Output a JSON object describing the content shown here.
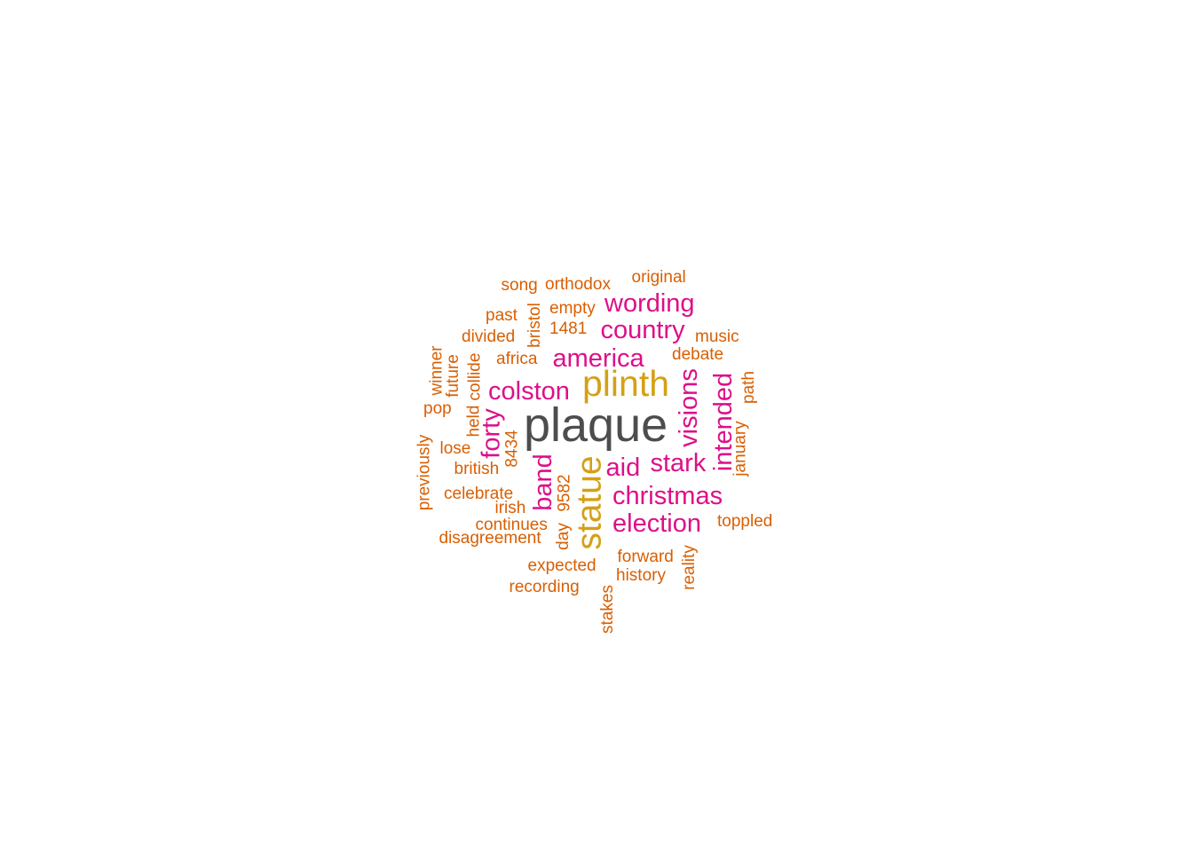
{
  "colors": {
    "dark": "#4d4d4d",
    "gold": "#d4a017",
    "magenta": "#dd0f8a",
    "orange": "#d95f02"
  },
  "words": [
    {
      "text": "plaque",
      "tier": "dark"
    },
    {
      "text": "plinth",
      "tier": "gold"
    },
    {
      "text": "statue",
      "tier": "gold"
    },
    {
      "text": "wording",
      "tier": "magenta"
    },
    {
      "text": "country",
      "tier": "magenta"
    },
    {
      "text": "america",
      "tier": "magenta"
    },
    {
      "text": "colston",
      "tier": "magenta"
    },
    {
      "text": "visions",
      "tier": "magenta"
    },
    {
      "text": "intended",
      "tier": "magenta"
    },
    {
      "text": "forty",
      "tier": "magenta"
    },
    {
      "text": "band",
      "tier": "magenta"
    },
    {
      "text": "aid",
      "tier": "magenta"
    },
    {
      "text": "stark",
      "tier": "magenta"
    },
    {
      "text": "christmas",
      "tier": "magenta"
    },
    {
      "text": "election",
      "tier": "magenta"
    },
    {
      "text": "song",
      "tier": "orange"
    },
    {
      "text": "orthodox",
      "tier": "orange"
    },
    {
      "text": "original",
      "tier": "orange"
    },
    {
      "text": "past",
      "tier": "orange"
    },
    {
      "text": "empty",
      "tier": "orange"
    },
    {
      "text": "bristol",
      "tier": "orange"
    },
    {
      "text": "divided",
      "tier": "orange"
    },
    {
      "text": "1481",
      "tier": "orange"
    },
    {
      "text": "music",
      "tier": "orange"
    },
    {
      "text": "africa",
      "tier": "orange"
    },
    {
      "text": "debate",
      "tier": "orange"
    },
    {
      "text": "winner",
      "tier": "orange"
    },
    {
      "text": "future",
      "tier": "orange"
    },
    {
      "text": "collide",
      "tier": "orange"
    },
    {
      "text": "path",
      "tier": "orange"
    },
    {
      "text": "held",
      "tier": "orange"
    },
    {
      "text": "pop",
      "tier": "orange"
    },
    {
      "text": "january",
      "tier": "orange"
    },
    {
      "text": "previously",
      "tier": "orange"
    },
    {
      "text": "lose",
      "tier": "orange"
    },
    {
      "text": "8434",
      "tier": "orange"
    },
    {
      "text": "british",
      "tier": "orange"
    },
    {
      "text": "9582",
      "tier": "orange"
    },
    {
      "text": "celebrate",
      "tier": "orange"
    },
    {
      "text": "irish",
      "tier": "orange"
    },
    {
      "text": "continues",
      "tier": "orange"
    },
    {
      "text": "toppled",
      "tier": "orange"
    },
    {
      "text": "disagreement",
      "tier": "orange"
    },
    {
      "text": "day",
      "tier": "orange"
    },
    {
      "text": "forward",
      "tier": "orange"
    },
    {
      "text": "reality",
      "tier": "orange"
    },
    {
      "text": "expected",
      "tier": "orange"
    },
    {
      "text": "history",
      "tier": "orange"
    },
    {
      "text": "recording",
      "tier": "orange"
    },
    {
      "text": "stakes",
      "tier": "orange"
    }
  ]
}
